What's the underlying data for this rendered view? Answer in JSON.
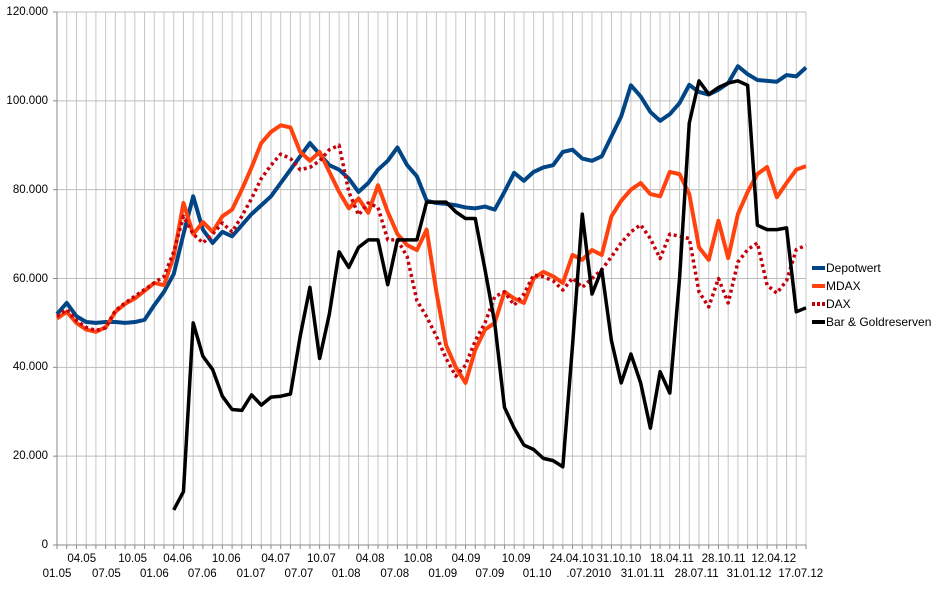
{
  "chart_data": {
    "type": "line",
    "title": "",
    "xlabel": "",
    "ylabel": "",
    "grid": true,
    "legend_position": "right",
    "y_axis": {
      "min": 0,
      "max": 120000,
      "tick_step": 20000,
      "tick_labels": [
        "0",
        "20.000",
        "40.000",
        "60.000",
        "80.000",
        "100.000",
        "120.000"
      ]
    },
    "x_axis": {
      "note": "staggered two-row date labels",
      "labels": [
        {
          "text": "01.05",
          "row": "lower",
          "pos": 0.0
        },
        {
          "text": "04.05",
          "row": "upper",
          "pos": 0.033
        },
        {
          "text": "07.05",
          "row": "lower",
          "pos": 0.066
        },
        {
          "text": "10.05",
          "row": "upper",
          "pos": 0.101
        },
        {
          "text": "01.06",
          "row": "lower",
          "pos": 0.13
        },
        {
          "text": "04.06",
          "row": "upper",
          "pos": 0.161
        },
        {
          "text": "07.06",
          "row": "lower",
          "pos": 0.194
        },
        {
          "text": "10.06",
          "row": "upper",
          "pos": 0.226
        },
        {
          "text": "01.07",
          "row": "lower",
          "pos": 0.259
        },
        {
          "text": "04.07",
          "row": "upper",
          "pos": 0.292
        },
        {
          "text": "07.07",
          "row": "lower",
          "pos": 0.323
        },
        {
          "text": "10.07",
          "row": "upper",
          "pos": 0.353
        },
        {
          "text": "01.08",
          "row": "lower",
          "pos": 0.386
        },
        {
          "text": "04.08",
          "row": "upper",
          "pos": 0.418
        },
        {
          "text": "07.08",
          "row": "lower",
          "pos": 0.451
        },
        {
          "text": "10.08",
          "row": "upper",
          "pos": 0.482
        },
        {
          "text": "01.09",
          "row": "lower",
          "pos": 0.515
        },
        {
          "text": "04.09",
          "row": "upper",
          "pos": 0.546
        },
        {
          "text": "07.09",
          "row": "lower",
          "pos": 0.578
        },
        {
          "text": "10.09",
          "row": "upper",
          "pos": 0.613
        },
        {
          "text": "01.10",
          "row": "lower",
          "pos": 0.641
        },
        {
          "text": "24.04.10",
          "row": "upper",
          "pos": 0.688
        },
        {
          "text": ".07.2010",
          "row": "lower",
          "pos": 0.71
        },
        {
          "text": "31.10.10",
          "row": "upper",
          "pos": 0.75
        },
        {
          "text": "31.01.11",
          "row": "lower",
          "pos": 0.782
        },
        {
          "text": "18.04.11",
          "row": "upper",
          "pos": 0.821
        },
        {
          "text": "28.07.11",
          "row": "lower",
          "pos": 0.854
        },
        {
          "text": "28.10.11",
          "row": "upper",
          "pos": 0.89
        },
        {
          "text": "31.01.12",
          "row": "lower",
          "pos": 0.924
        },
        {
          "text": "12.04.12",
          "row": "upper",
          "pos": 0.957
        },
        {
          "text": "17.07.12",
          "row": "lower",
          "pos": 0.993
        }
      ]
    },
    "series": [
      {
        "name": "Depotwert",
        "color": "#004586",
        "style": "solid",
        "width": 4,
        "values": [
          52000,
          54500,
          51500,
          50200,
          50000,
          50200,
          50200,
          50000,
          50200,
          50700,
          54000,
          57000,
          61000,
          70000,
          78500,
          71000,
          68000,
          70500,
          69500,
          72000,
          74500,
          76500,
          78500,
          81500,
          84500,
          87500,
          90500,
          88000,
          85500,
          84500,
          82500,
          79500,
          81500,
          84500,
          86500,
          89500,
          85500,
          83000,
          77500,
          77000,
          76800,
          76500,
          76000,
          75800,
          76200,
          75500,
          79500,
          83800,
          82000,
          84000,
          85000,
          85500,
          88500,
          89000,
          87000,
          86500,
          87500,
          92000,
          96500,
          103500,
          101000,
          97500,
          95500,
          97000,
          99500,
          103600,
          102000,
          101400,
          102500,
          104000,
          107800,
          106000,
          104700,
          104500,
          104300,
          105800,
          105500,
          107500
        ]
      },
      {
        "name": "MDAX",
        "color": "#FF420E",
        "style": "solid",
        "width": 4,
        "values": [
          51000,
          52500,
          50000,
          48500,
          48000,
          49000,
          52500,
          54300,
          55500,
          57200,
          59000,
          58500,
          65000,
          77000,
          70000,
          72700,
          70500,
          74000,
          75500,
          80000,
          85000,
          90500,
          93000,
          94500,
          94000,
          88500,
          86500,
          88500,
          84000,
          79500,
          75800,
          78000,
          74800,
          81000,
          75000,
          70000,
          67500,
          66400,
          71000,
          57000,
          45000,
          40000,
          36500,
          44000,
          48500,
          50000,
          57000,
          55500,
          54500,
          60000,
          61500,
          60500,
          59000,
          65300,
          64200,
          66400,
          65300,
          74000,
          77500,
          80000,
          81500,
          79000,
          78500,
          84000,
          83500,
          79000,
          67000,
          64200,
          73000,
          64600,
          74500,
          79500,
          83500,
          85100,
          78300,
          81500,
          84500,
          85300
        ]
      },
      {
        "name": "DAX",
        "color": "#C5000B",
        "style": "dotted",
        "width": 3.5,
        "values": [
          51500,
          53000,
          50500,
          49000,
          48300,
          48900,
          52800,
          54500,
          56000,
          57500,
          59000,
          60500,
          66000,
          74000,
          70000,
          68000,
          70000,
          72500,
          70500,
          74000,
          78000,
          82500,
          85500,
          88000,
          87000,
          84500,
          85000,
          86500,
          89000,
          90000,
          79500,
          74300,
          77000,
          76000,
          68700,
          68700,
          64900,
          55000,
          51400,
          47000,
          42000,
          38000,
          40500,
          46000,
          50000,
          55900,
          57000,
          54000,
          56500,
          60800,
          60400,
          59500,
          57400,
          60100,
          58000,
          60000,
          62000,
          64900,
          68000,
          70500,
          72100,
          69000,
          64500,
          70000,
          69500,
          69000,
          57000,
          53600,
          60000,
          54500,
          63700,
          66500,
          68000,
          58500,
          56700,
          59500,
          66500,
          67500
        ]
      },
      {
        "name": "Bar & Goldreserven",
        "color": "#000000",
        "style": "solid",
        "width": 3.5,
        "values": [
          null,
          null,
          null,
          null,
          null,
          null,
          null,
          null,
          null,
          null,
          null,
          null,
          7900,
          12000,
          50000,
          42500,
          39500,
          33500,
          30500,
          30300,
          33800,
          31500,
          33300,
          33500,
          34000,
          47000,
          58000,
          42000,
          52000,
          66000,
          62500,
          67000,
          68700,
          68700,
          58600,
          68700,
          68700,
          68700,
          77200,
          77200,
          77200,
          75000,
          73500,
          73500,
          62000,
          50000,
          31000,
          26300,
          22500,
          21500,
          19500,
          19000,
          17600,
          45000,
          74500,
          56500,
          62000,
          46000,
          36500,
          43000,
          36500,
          26300,
          39000,
          34200,
          60000,
          95000,
          104500,
          101500,
          103000,
          104000,
          104500,
          103500,
          72000,
          71000,
          71000,
          71400,
          52500,
          53400
        ]
      }
    ]
  },
  "legend": {
    "items": [
      {
        "label": "Depotwert",
        "color": "#004586",
        "style": "solid"
      },
      {
        "label": "MDAX",
        "color": "#FF420E",
        "style": "solid"
      },
      {
        "label": "DAX",
        "color": "#C5000B",
        "style": "dotted"
      },
      {
        "label": "Bar & Goldreserven",
        "color": "#000000",
        "style": "solid"
      }
    ]
  },
  "colors": {
    "background": "#ffffff",
    "grid_vertical": "#c6c6c6",
    "grid_horizontal": "#bdbdbd",
    "axis": "#8a8a8a",
    "text": "#000000"
  }
}
